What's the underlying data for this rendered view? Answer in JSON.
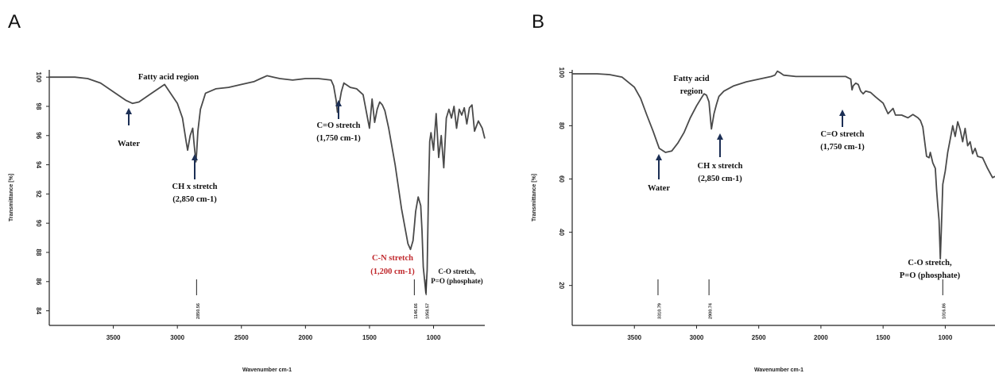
{
  "chart_data": [
    {
      "type": "line",
      "panel": "A",
      "xlabel": "Wavenumber cm-1",
      "ylabel": "Transmittance [%]",
      "xlim": [
        4000,
        600
      ],
      "ylim": [
        83,
        100.5
      ],
      "x_ticks": [
        "3500",
        "3000",
        "2500",
        "2000",
        "1500",
        "1000"
      ],
      "y_ticks": [
        "100",
        "98",
        "96",
        "94",
        "92",
        "90",
        "88",
        "86",
        "84"
      ],
      "series": [
        {
          "x": [
            4000,
            3800,
            3700,
            3600,
            3500,
            3400,
            3350,
            3300,
            3200,
            3100,
            3000,
            2960,
            2930,
            2920,
            2900,
            2880,
            2870,
            2855,
            2850,
            2840,
            2820,
            2780,
            2700,
            2600,
            2500,
            2400,
            2350,
            2300,
            2250,
            2200,
            2100,
            2000,
            1900,
            1800,
            1780,
            1760,
            1750,
            1740,
            1720,
            1700,
            1650,
            1600,
            1550,
            1500,
            1480,
            1460,
            1440,
            1420,
            1400,
            1380,
            1350,
            1300,
            1250,
            1200,
            1180,
            1160,
            1150,
            1140,
            1120,
            1100,
            1090,
            1080,
            1060,
            1050,
            1040,
            1030,
            1020,
            1000,
            980,
            960,
            940,
            920,
            900,
            880,
            860,
            840,
            820,
            800,
            780,
            760,
            740,
            720,
            700,
            680,
            650,
            620,
            600
          ],
          "y": [
            100,
            100,
            99.9,
            99.6,
            99.0,
            98.4,
            98.2,
            98.3,
            98.9,
            99.5,
            98.2,
            97.2,
            95.5,
            95.0,
            96.0,
            96.5,
            95.5,
            94.2,
            94.8,
            96.3,
            97.8,
            98.9,
            99.2,
            99.3,
            99.5,
            99.7,
            99.9,
            100.1,
            100.0,
            99.9,
            99.8,
            99.9,
            99.9,
            99.8,
            99.4,
            98.4,
            97.6,
            98.0,
            99.0,
            99.6,
            99.3,
            99.2,
            98.8,
            96.5,
            98.5,
            96.9,
            97.8,
            98.3,
            98.1,
            97.7,
            96.5,
            94.0,
            91.0,
            88.6,
            88.2,
            88.8,
            89.8,
            90.8,
            91.8,
            91.2,
            89.5,
            87.0,
            85.2,
            86.8,
            92.0,
            95.6,
            96.2,
            95.0,
            97.5,
            94.5,
            96.0,
            93.8,
            97.2,
            97.8,
            97.2,
            98.0,
            96.5,
            97.8,
            97.4,
            97.9,
            96.8,
            97.9,
            98.1,
            96.3,
            97.0,
            96.5,
            95.8
          ]
        }
      ],
      "peaks": [
        {
          "x": 2850,
          "label": "2850.56"
        },
        {
          "x": 1150,
          "label": "1146.66"
        },
        {
          "x": 1058,
          "label": "1058.57"
        }
      ],
      "annotations": [
        {
          "text": "Fatty acid region",
          "color": "#111111"
        },
        {
          "text": "Water",
          "color": "#111111"
        },
        {
          "text": "CH x stretch",
          "text2": "(2,850 cm-1)",
          "color": "#111111"
        },
        {
          "text": "C=O stretch",
          "text2": "(1,750 cm-1)",
          "color": "#111111"
        },
        {
          "text": "C-N stretch",
          "text2": "(1,200 cm-1)",
          "color": "#c0282c"
        },
        {
          "text": "C-O stretch,",
          "text2": "P=O (phosphate)",
          "color": "#111111"
        }
      ]
    },
    {
      "type": "line",
      "panel": "B",
      "xlabel": "Wavenumber cm-1",
      "ylabel": "Transmittance [%]",
      "xlim": [
        4000,
        600
      ],
      "ylim": [
        5,
        101
      ],
      "x_ticks": [
        "3500",
        "3000",
        "2500",
        "2000",
        "1500",
        "1000"
      ],
      "y_ticks": [
        "100",
        "80",
        "60",
        "40",
        "20"
      ],
      "series": [
        {
          "x": [
            4000,
            3800,
            3700,
            3600,
            3500,
            3450,
            3400,
            3350,
            3300,
            3250,
            3200,
            3150,
            3100,
            3050,
            3000,
            2960,
            2940,
            2920,
            2900,
            2880,
            2860,
            2840,
            2820,
            2780,
            2700,
            2600,
            2500,
            2400,
            2370,
            2350,
            2330,
            2300,
            2200,
            2100,
            2000,
            1900,
            1800,
            1760,
            1750,
            1740,
            1720,
            1700,
            1680,
            1660,
            1640,
            1600,
            1560,
            1500,
            1460,
            1420,
            1400,
            1350,
            1300,
            1260,
            1220,
            1200,
            1180,
            1160,
            1150,
            1130,
            1120,
            1100,
            1080,
            1070,
            1060,
            1050,
            1040,
            1030,
            1020,
            1000,
            980,
            960,
            940,
            920,
            900,
            880,
            860,
            840,
            820,
            800,
            780,
            760,
            740,
            700,
            660,
            620,
            600
          ],
          "y": [
            99.5,
            99.5,
            99.2,
            98.3,
            94.5,
            90.3,
            84.0,
            78.0,
            71.5,
            70.0,
            70.5,
            73.5,
            77.5,
            83.0,
            87.5,
            90.5,
            92.0,
            91.5,
            89.0,
            78.8,
            84.5,
            88.0,
            91.0,
            93.0,
            95.0,
            96.5,
            97.5,
            98.5,
            99.0,
            100.5,
            100.0,
            99.0,
            98.5,
            98.5,
            98.5,
            98.5,
            98.5,
            97.5,
            93.5,
            95.0,
            96.0,
            95.5,
            93.0,
            92.0,
            93.0,
            92.5,
            90.8,
            88.5,
            84.5,
            86.5,
            84.0,
            84.0,
            83.0,
            84.2,
            83.0,
            82.0,
            79.5,
            72.0,
            68.5,
            68.0,
            70.0,
            66.0,
            64.0,
            56.0,
            50.0,
            44.5,
            30.0,
            43.0,
            58.0,
            63.0,
            70.0,
            75.0,
            80.0,
            76.0,
            81.5,
            78.5,
            74.0,
            79.0,
            72.5,
            74.0,
            69.5,
            71.5,
            68.5,
            68.0,
            64.0,
            60.5,
            61.0
          ]
        }
      ],
      "peaks": [
        {
          "x": 3310,
          "label": "3310.79"
        },
        {
          "x": 2900,
          "label": "2900.74"
        },
        {
          "x": 1020,
          "label": "1016.86"
        }
      ],
      "annotations": [
        {
          "text": "Fatty acid",
          "text2": "region",
          "color": "#111111"
        },
        {
          "text": "Water",
          "color": "#111111"
        },
        {
          "text": "CH x stretch",
          "text2": "(2,850 cm-1)",
          "color": "#111111"
        },
        {
          "text": "C=O stretch",
          "text2": "(1,750 cm-1)",
          "color": "#111111"
        },
        {
          "text": "C-O stretch,",
          "text2": "P=O (phosphate)",
          "color": "#111111"
        }
      ]
    }
  ],
  "colors": {
    "curve": "#4a4a4a",
    "axis": "#222222",
    "arrow": "#1c2f55",
    "highlight": "#c0282c"
  }
}
